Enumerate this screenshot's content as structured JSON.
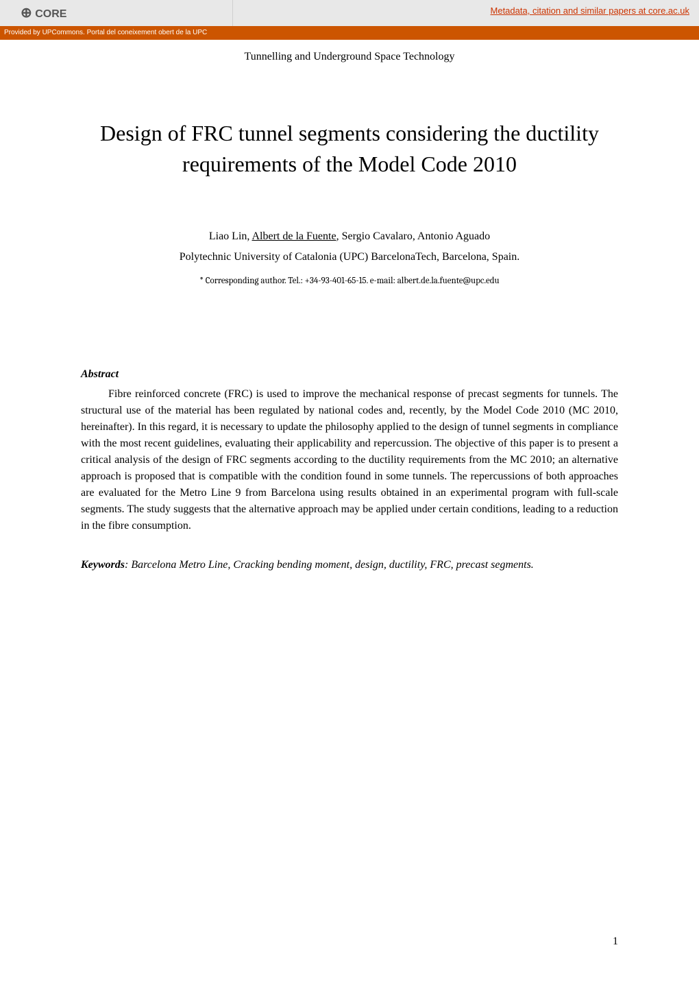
{
  "header": {
    "core_logo_label": "CORE",
    "metadata_link": "Metadata, citation and similar papers at core.ac.uk",
    "provider_text": "Provided by UPCommons. Portal del coneixement obert de la UPC",
    "bar_background": "#e8e8e8",
    "orange_bar_background": "#cc5500",
    "link_color": "#cc3300"
  },
  "paper": {
    "journal": "Tunnelling and Underground Space Technology",
    "title": "Design of FRC tunnel segments considering the ductility requirements of the Model Code 2010",
    "authors_prefix": "Liao Lin, ",
    "author_underlined": "Albert de la Fuente",
    "authors_suffix": ", Sergio Cavalaro, Antonio Aguado",
    "affiliation": "Polytechnic University of Catalonia (UPC) BarcelonaTech, Barcelona, Spain.",
    "corresponding": "* Corresponding author. Tel.: +34-93-401-65-15. e-mail: albert.de.la.fuente@upc.edu",
    "abstract_label": "Abstract",
    "abstract_text": "Fibre reinforced concrete (FRC) is used to improve the mechanical response of precast segments for tunnels. The structural use of the material has been regulated by national codes and, recently, by the Model Code 2010 (MC 2010, hereinafter). In this regard, it is necessary to update the philosophy applied to the design of tunnel segments in compliance with the most recent guidelines, evaluating their applicability and repercussion. The objective of this paper is to present a critical analysis of the design of FRC segments according to the ductility requirements from the MC 2010; an alternative approach is proposed that is compatible with the condition found in some tunnels. The repercussions of both approaches are evaluated for the Metro Line 9 from Barcelona using results obtained in an experimental program with full-scale segments. The study suggests that the alternative approach may be applied under certain conditions, leading to a reduction in the fibre consumption.",
    "keywords_label": "Keywords",
    "keywords_text": ": Barcelona Metro Line, Cracking bending moment, design, ductility, FRC, precast segments.",
    "page_number": "1"
  },
  "typography": {
    "title_fontsize": 32,
    "body_fontsize": 16,
    "corresponding_fontsize": 13,
    "font_family": "Times New Roman"
  },
  "colors": {
    "background": "#ffffff",
    "text": "#000000"
  }
}
